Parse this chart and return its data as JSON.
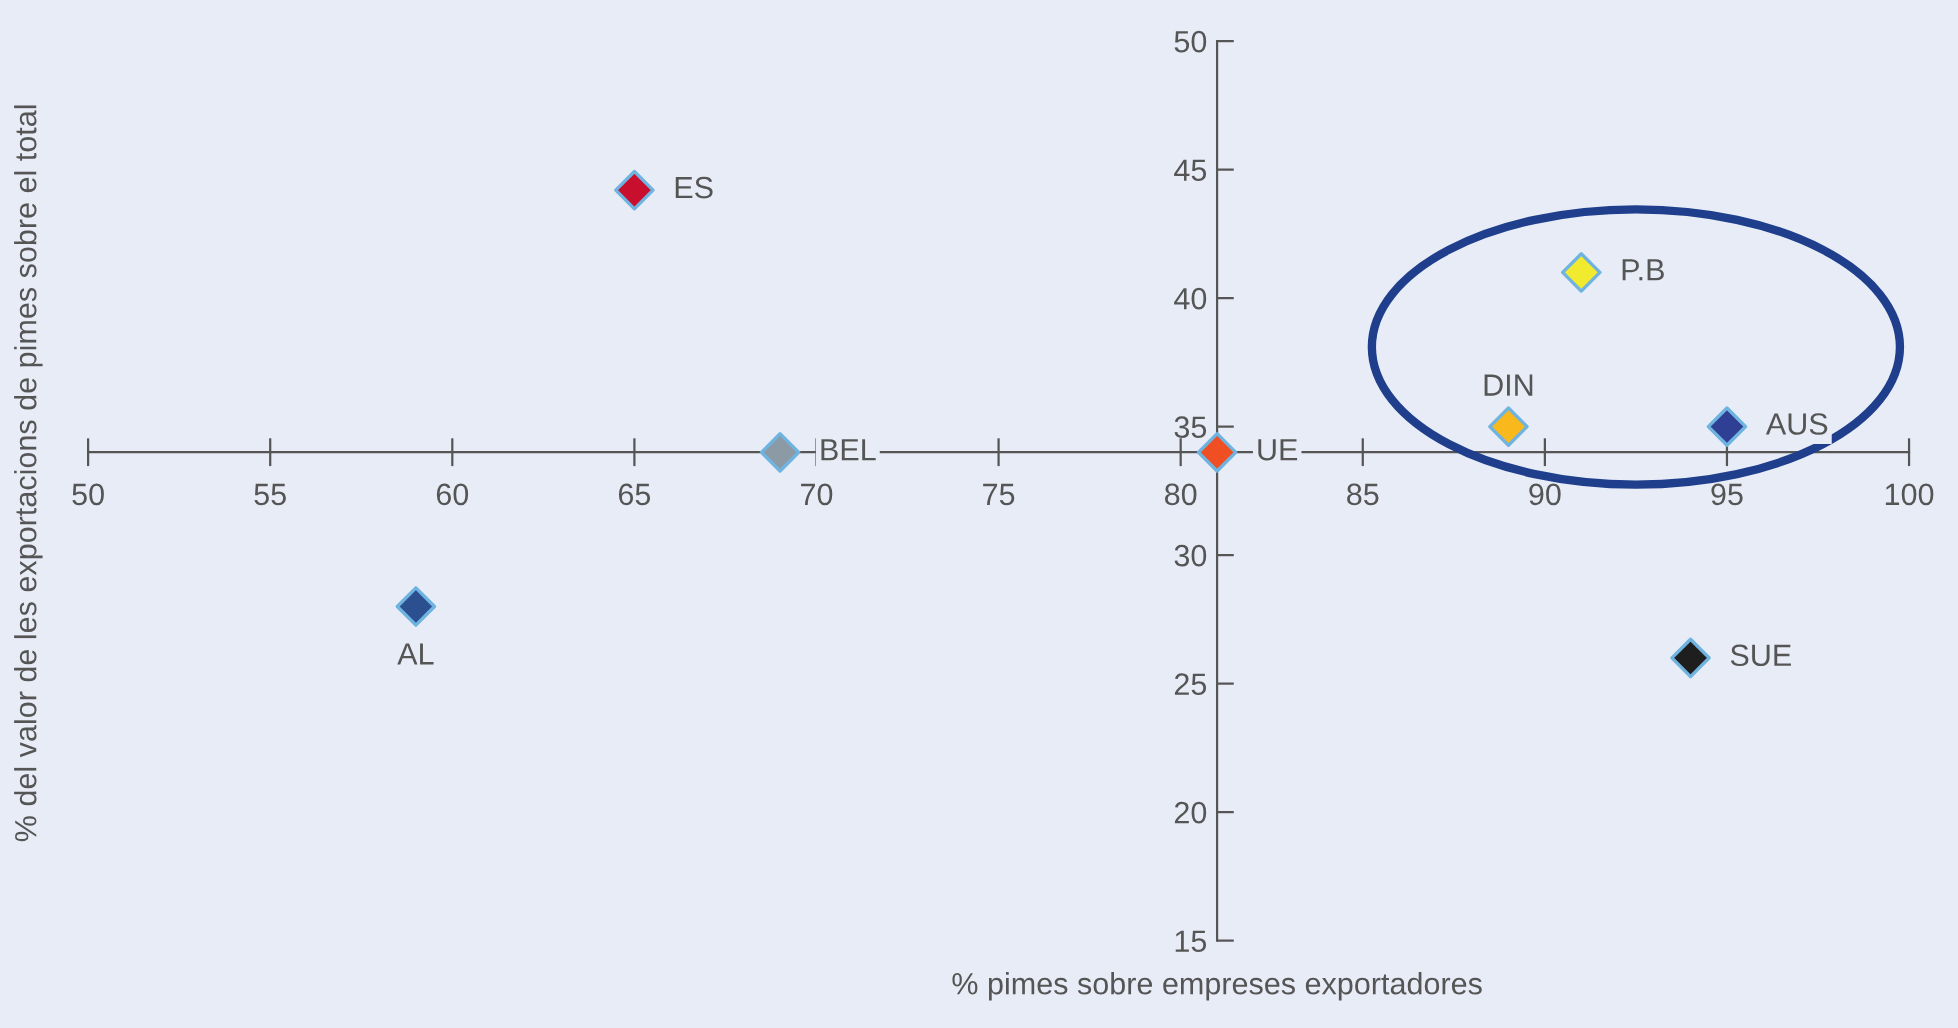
{
  "chart_data": {
    "type": "scatter",
    "xlabel": "% pimes sobre empreses exportadores",
    "ylabel": "% del valor de les exportacions de pimes sobre el total",
    "xlim": [
      50,
      100
    ],
    "ylim": [
      15,
      50
    ],
    "xticks": [
      50,
      55,
      60,
      65,
      70,
      75,
      80,
      85,
      90,
      95,
      100
    ],
    "yticks": [
      15,
      20,
      25,
      30,
      35,
      40,
      45,
      50
    ],
    "marker": "diamond",
    "grid": false,
    "legend": false,
    "series": [
      {
        "name": "ES",
        "color": "#c8102e",
        "x": [
          65
        ],
        "values": [
          44.2
        ]
      },
      {
        "name": "BEL",
        "color": "#8c9aa6",
        "x": [
          69
        ],
        "values": [
          34
        ]
      },
      {
        "name": "UE",
        "color": "#f04e23",
        "x": [
          81
        ],
        "values": [
          34
        ]
      },
      {
        "name": "AL",
        "color": "#2b4f8f",
        "x": [
          59
        ],
        "values": [
          28
        ]
      },
      {
        "name": "P.B",
        "color": "#f2ea2e",
        "x": [
          91
        ],
        "values": [
          41
        ]
      },
      {
        "name": "DIN",
        "color": "#f9b81b",
        "x": [
          89
        ],
        "values": [
          35
        ]
      },
      {
        "name": "AUS",
        "color": "#2e3f94",
        "x": [
          95
        ],
        "values": [
          35
        ]
      },
      {
        "name": "SUE",
        "color": "#1e1e1e",
        "x": [
          94
        ],
        "values": [
          26
        ]
      }
    ]
  }
}
